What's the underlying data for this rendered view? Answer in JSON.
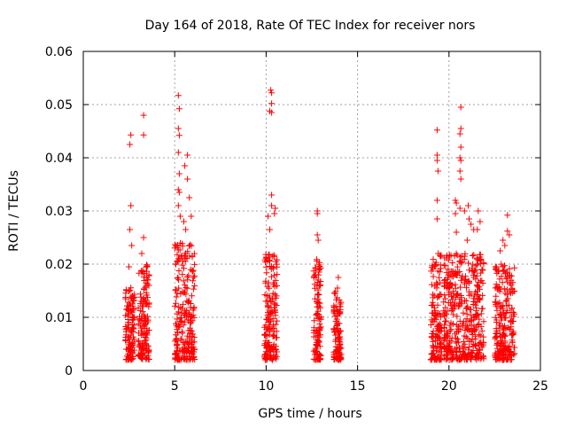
{
  "chart_data": {
    "type": "scatter",
    "title": "Day 164 of 2018, Rate Of TEC Index for receiver nors",
    "xlabel": "GPS time / hours",
    "ylabel": "ROTI / TECUs",
    "xlim": [
      0,
      25
    ],
    "ylim": [
      0,
      0.06
    ],
    "xticks": [
      0,
      5,
      10,
      15,
      20,
      25
    ],
    "xtick_labels": [
      "0",
      "5",
      "10",
      "15",
      "20",
      "25"
    ],
    "yticks": [
      0,
      0.01,
      0.02,
      0.03,
      0.04,
      0.05,
      0.06
    ],
    "ytick_labels": [
      "0",
      "0.01",
      "0.02",
      "0.03",
      "0.04",
      "0.05",
      "0.06"
    ],
    "grid": true,
    "marker": "+",
    "color": "#ff0000",
    "clusters": [
      {
        "x_start": 2.3,
        "x_end": 2.8,
        "typical_range": [
          0.002,
          0.016
        ],
        "outliers": [
          [
            2.55,
            0.0425
          ],
          [
            2.6,
            0.0443
          ],
          [
            2.6,
            0.031
          ],
          [
            2.55,
            0.0265
          ],
          [
            2.5,
            0.0195
          ],
          [
            2.65,
            0.0235
          ]
        ]
      },
      {
        "x_start": 3.0,
        "x_end": 3.6,
        "typical_range": [
          0.002,
          0.02
        ],
        "outliers": [
          [
            3.3,
            0.048
          ],
          [
            3.3,
            0.0443
          ],
          [
            3.3,
            0.025
          ],
          [
            3.2,
            0.022
          ]
        ]
      },
      {
        "x_start": 5.0,
        "x_end": 6.1,
        "typical_range": [
          0.002,
          0.024
        ],
        "outliers": [
          [
            5.2,
            0.0517
          ],
          [
            5.25,
            0.0492
          ],
          [
            5.2,
            0.0455
          ],
          [
            5.25,
            0.0442
          ],
          [
            5.2,
            0.041
          ],
          [
            5.25,
            0.037
          ],
          [
            5.2,
            0.034
          ],
          [
            5.25,
            0.0335
          ],
          [
            5.2,
            0.031
          ],
          [
            5.7,
            0.0405
          ],
          [
            5.55,
            0.0385
          ],
          [
            5.7,
            0.036
          ],
          [
            5.8,
            0.0325
          ],
          [
            5.9,
            0.029
          ],
          [
            5.5,
            0.028
          ],
          [
            5.3,
            0.029
          ],
          [
            5.6,
            0.0265
          ]
        ]
      },
      {
        "x_start": 9.9,
        "x_end": 10.6,
        "typical_range": [
          0.002,
          0.022
        ],
        "outliers": [
          [
            10.25,
            0.0527
          ],
          [
            10.3,
            0.0522
          ],
          [
            10.3,
            0.0502
          ],
          [
            10.2,
            0.0488
          ],
          [
            10.3,
            0.0485
          ],
          [
            10.3,
            0.033
          ],
          [
            10.3,
            0.031
          ],
          [
            10.5,
            0.0305
          ],
          [
            10.45,
            0.0295
          ],
          [
            10.1,
            0.029
          ],
          [
            10.2,
            0.0265
          ]
        ]
      },
      {
        "x_start": 12.6,
        "x_end": 13.0,
        "typical_range": [
          0.002,
          0.022
        ],
        "outliers": [
          [
            12.8,
            0.03
          ],
          [
            12.8,
            0.0295
          ],
          [
            12.8,
            0.0255
          ],
          [
            12.85,
            0.0245
          ]
        ]
      },
      {
        "x_start": 13.7,
        "x_end": 14.1,
        "typical_range": [
          0.002,
          0.015
        ],
        "outliers": [
          [
            13.95,
            0.0175
          ],
          [
            13.9,
            0.0155
          ]
        ]
      },
      {
        "x_start": 19.0,
        "x_end": 19.6,
        "typical_range": [
          0.002,
          0.022
        ],
        "outliers": [
          [
            19.35,
            0.0452
          ],
          [
            19.35,
            0.0405
          ],
          [
            19.35,
            0.0395
          ],
          [
            19.4,
            0.0375
          ],
          [
            19.35,
            0.032
          ],
          [
            19.35,
            0.0285
          ]
        ]
      },
      {
        "x_start": 19.7,
        "x_end": 21.9,
        "typical_range": [
          0.002,
          0.022
        ],
        "outliers": [
          [
            20.65,
            0.0495
          ],
          [
            20.65,
            0.0455
          ],
          [
            20.6,
            0.0445
          ],
          [
            20.65,
            0.042
          ],
          [
            20.6,
            0.04
          ],
          [
            20.65,
            0.0395
          ],
          [
            20.6,
            0.0375
          ],
          [
            20.65,
            0.036
          ],
          [
            20.35,
            0.032
          ],
          [
            20.4,
            0.0315
          ],
          [
            20.35,
            0.0295
          ],
          [
            20.6,
            0.0305
          ],
          [
            20.85,
            0.03
          ],
          [
            21.05,
            0.031
          ],
          [
            21.1,
            0.0285
          ],
          [
            21.2,
            0.0275
          ],
          [
            21.35,
            0.0265
          ],
          [
            21.6,
            0.03
          ],
          [
            21.7,
            0.028
          ],
          [
            21.55,
            0.0265
          ],
          [
            20.4,
            0.026
          ],
          [
            21.0,
            0.0245
          ]
        ]
      },
      {
        "x_start": 22.5,
        "x_end": 23.6,
        "typical_range": [
          0.002,
          0.02
        ],
        "outliers": [
          [
            23.2,
            0.0292
          ],
          [
            23.2,
            0.0262
          ],
          [
            23.3,
            0.0255
          ],
          [
            22.95,
            0.0245
          ],
          [
            23.05,
            0.0235
          ],
          [
            22.8,
            0.0225
          ]
        ]
      }
    ]
  }
}
